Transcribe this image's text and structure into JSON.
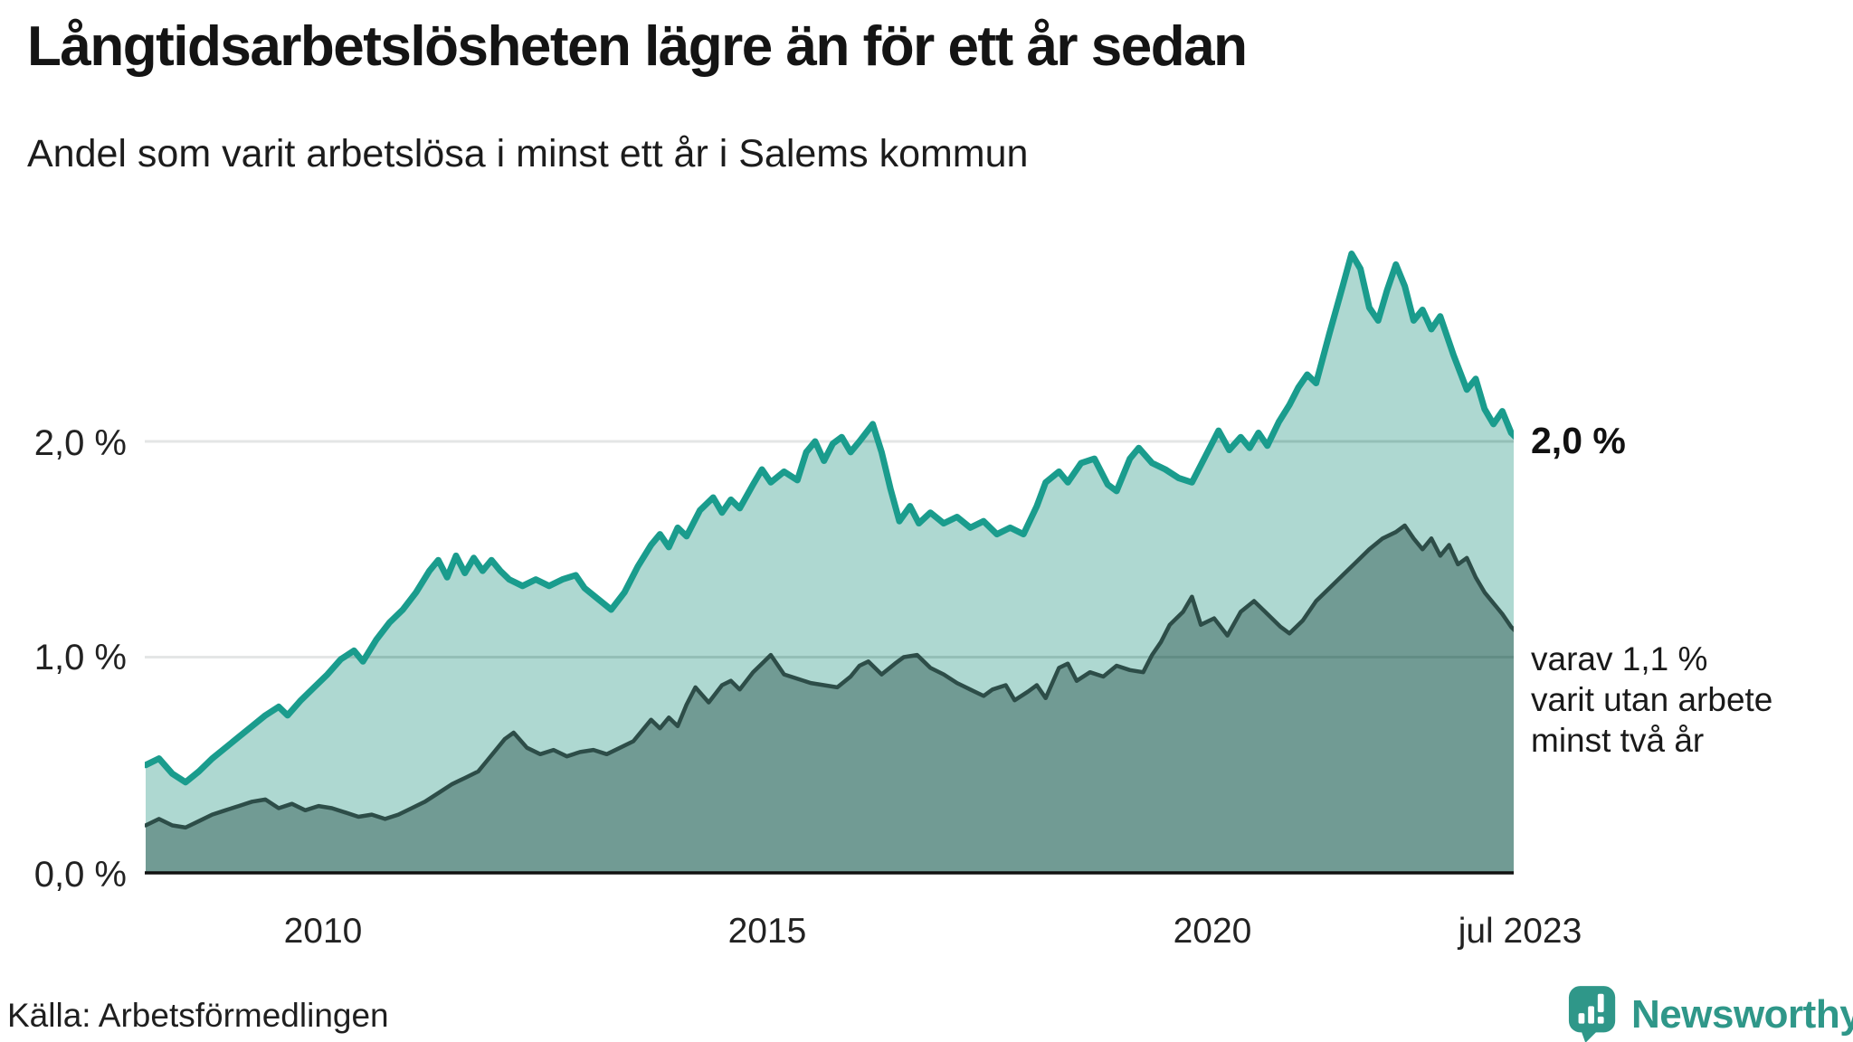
{
  "header": {
    "title": "Långtidsarbetslösheten lägre än för ett år sedan",
    "subtitle": "Andel som varit arbetslösa i minst ett år i Salems kommun"
  },
  "footer": {
    "source": "Källa: Arbetsförmedlingen",
    "brand": {
      "name": "Newsworthy",
      "color": "#2f9789"
    }
  },
  "chart_data": {
    "type": "area",
    "title": "Långtidsarbetslösheten lägre än för ett år sedan",
    "subtitle": "Andel som varit arbetslösa i minst ett år i Salems kommun",
    "xlabel": "",
    "ylabel": "",
    "x_range": [
      2008.0,
      2023.58
    ],
    "ylim": [
      0,
      3.3
    ],
    "grid": "horizontal",
    "legend": "none",
    "gridline_values": [
      1.0,
      2.0
    ],
    "y_tick_labels": [
      "2,0 %",
      "1,0 %",
      "0,0 %"
    ],
    "x_tick_labels": [
      "2010",
      "2015",
      "2020",
      "jul 2023"
    ],
    "x_tick_values": [
      2010,
      2015,
      2020,
      2023.5
    ],
    "colors": {
      "gridline": "#e4e6e6",
      "baseline": "#111111"
    },
    "series": [
      {
        "id": "unemployed_min_one_year_total",
        "end_label": "2,0 %",
        "end_value": 2.0,
        "color": "#1a9c8d",
        "fill": "#aed8d1",
        "stroke_width": 7,
        "points": [
          [
            2008.0,
            0.5
          ],
          [
            2008.15,
            0.53
          ],
          [
            2008.3,
            0.46
          ],
          [
            2008.45,
            0.42
          ],
          [
            2008.6,
            0.47
          ],
          [
            2008.75,
            0.53
          ],
          [
            2008.9,
            0.58
          ],
          [
            2009.05,
            0.63
          ],
          [
            2009.2,
            0.68
          ],
          [
            2009.35,
            0.73
          ],
          [
            2009.5,
            0.77
          ],
          [
            2009.6,
            0.73
          ],
          [
            2009.75,
            0.8
          ],
          [
            2009.9,
            0.86
          ],
          [
            2010.05,
            0.92
          ],
          [
            2010.2,
            0.99
          ],
          [
            2010.35,
            1.03
          ],
          [
            2010.45,
            0.98
          ],
          [
            2010.6,
            1.08
          ],
          [
            2010.75,
            1.16
          ],
          [
            2010.9,
            1.22
          ],
          [
            2011.05,
            1.3
          ],
          [
            2011.2,
            1.4
          ],
          [
            2011.3,
            1.45
          ],
          [
            2011.4,
            1.37
          ],
          [
            2011.5,
            1.47
          ],
          [
            2011.6,
            1.39
          ],
          [
            2011.7,
            1.46
          ],
          [
            2011.8,
            1.4
          ],
          [
            2011.9,
            1.45
          ],
          [
            2012.0,
            1.4
          ],
          [
            2012.1,
            1.36
          ],
          [
            2012.25,
            1.33
          ],
          [
            2012.4,
            1.36
          ],
          [
            2012.55,
            1.33
          ],
          [
            2012.7,
            1.36
          ],
          [
            2012.85,
            1.38
          ],
          [
            2012.95,
            1.32
          ],
          [
            2013.1,
            1.27
          ],
          [
            2013.25,
            1.22
          ],
          [
            2013.4,
            1.3
          ],
          [
            2013.55,
            1.42
          ],
          [
            2013.7,
            1.52
          ],
          [
            2013.8,
            1.57
          ],
          [
            2013.9,
            1.51
          ],
          [
            2014.0,
            1.6
          ],
          [
            2014.1,
            1.56
          ],
          [
            2014.25,
            1.68
          ],
          [
            2014.4,
            1.74
          ],
          [
            2014.5,
            1.67
          ],
          [
            2014.6,
            1.73
          ],
          [
            2014.7,
            1.69
          ],
          [
            2014.85,
            1.8
          ],
          [
            2014.95,
            1.87
          ],
          [
            2015.05,
            1.81
          ],
          [
            2015.2,
            1.86
          ],
          [
            2015.35,
            1.82
          ],
          [
            2015.45,
            1.95
          ],
          [
            2015.55,
            2.0
          ],
          [
            2015.65,
            1.91
          ],
          [
            2015.75,
            1.99
          ],
          [
            2015.85,
            2.02
          ],
          [
            2015.95,
            1.95
          ],
          [
            2016.05,
            2.0
          ],
          [
            2016.2,
            2.08
          ],
          [
            2016.3,
            1.95
          ],
          [
            2016.4,
            1.78
          ],
          [
            2016.5,
            1.63
          ],
          [
            2016.62,
            1.7
          ],
          [
            2016.72,
            1.62
          ],
          [
            2016.85,
            1.67
          ],
          [
            2017.0,
            1.62
          ],
          [
            2017.15,
            1.65
          ],
          [
            2017.3,
            1.6
          ],
          [
            2017.45,
            1.63
          ],
          [
            2017.6,
            1.57
          ],
          [
            2017.75,
            1.6
          ],
          [
            2017.9,
            1.57
          ],
          [
            2018.05,
            1.7
          ],
          [
            2018.15,
            1.81
          ],
          [
            2018.3,
            1.86
          ],
          [
            2018.4,
            1.81
          ],
          [
            2018.55,
            1.9
          ],
          [
            2018.7,
            1.92
          ],
          [
            2018.85,
            1.8
          ],
          [
            2018.95,
            1.77
          ],
          [
            2019.1,
            1.92
          ],
          [
            2019.2,
            1.97
          ],
          [
            2019.35,
            1.9
          ],
          [
            2019.5,
            1.87
          ],
          [
            2019.65,
            1.83
          ],
          [
            2019.8,
            1.81
          ],
          [
            2019.95,
            1.93
          ],
          [
            2020.1,
            2.05
          ],
          [
            2020.22,
            1.96
          ],
          [
            2020.35,
            2.02
          ],
          [
            2020.45,
            1.97
          ],
          [
            2020.55,
            2.04
          ],
          [
            2020.65,
            1.98
          ],
          [
            2020.78,
            2.09
          ],
          [
            2020.9,
            2.17
          ],
          [
            2021.0,
            2.25
          ],
          [
            2021.1,
            2.31
          ],
          [
            2021.2,
            2.27
          ],
          [
            2021.35,
            2.5
          ],
          [
            2021.5,
            2.72
          ],
          [
            2021.6,
            2.87
          ],
          [
            2021.7,
            2.8
          ],
          [
            2021.8,
            2.62
          ],
          [
            2021.9,
            2.56
          ],
          [
            2022.0,
            2.7
          ],
          [
            2022.1,
            2.82
          ],
          [
            2022.2,
            2.72
          ],
          [
            2022.3,
            2.56
          ],
          [
            2022.4,
            2.61
          ],
          [
            2022.5,
            2.52
          ],
          [
            2022.6,
            2.58
          ],
          [
            2022.75,
            2.4
          ],
          [
            2022.9,
            2.24
          ],
          [
            2023.0,
            2.29
          ],
          [
            2023.1,
            2.15
          ],
          [
            2023.2,
            2.08
          ],
          [
            2023.3,
            2.14
          ],
          [
            2023.4,
            2.04
          ],
          [
            2023.5,
            2.0
          ]
        ]
      },
      {
        "id": "unemployed_min_two_years",
        "end_value": 1.1,
        "note_lines": [
          "varav 1,1 %",
          "varit utan arbete",
          "minst två år"
        ],
        "color": "#2d4d48",
        "fill": "#719b94",
        "stroke_width": 4.5,
        "points": [
          [
            2008.0,
            0.22
          ],
          [
            2008.15,
            0.25
          ],
          [
            2008.3,
            0.22
          ],
          [
            2008.45,
            0.21
          ],
          [
            2008.6,
            0.24
          ],
          [
            2008.75,
            0.27
          ],
          [
            2008.9,
            0.29
          ],
          [
            2009.05,
            0.31
          ],
          [
            2009.2,
            0.33
          ],
          [
            2009.35,
            0.34
          ],
          [
            2009.5,
            0.3
          ],
          [
            2009.65,
            0.32
          ],
          [
            2009.8,
            0.29
          ],
          [
            2009.95,
            0.31
          ],
          [
            2010.1,
            0.3
          ],
          [
            2010.25,
            0.28
          ],
          [
            2010.4,
            0.26
          ],
          [
            2010.55,
            0.27
          ],
          [
            2010.7,
            0.25
          ],
          [
            2010.85,
            0.27
          ],
          [
            2011.0,
            0.3
          ],
          [
            2011.15,
            0.33
          ],
          [
            2011.3,
            0.37
          ],
          [
            2011.45,
            0.41
          ],
          [
            2011.6,
            0.44
          ],
          [
            2011.75,
            0.47
          ],
          [
            2011.85,
            0.52
          ],
          [
            2011.95,
            0.57
          ],
          [
            2012.05,
            0.62
          ],
          [
            2012.15,
            0.65
          ],
          [
            2012.3,
            0.58
          ],
          [
            2012.45,
            0.55
          ],
          [
            2012.6,
            0.57
          ],
          [
            2012.75,
            0.54
          ],
          [
            2012.9,
            0.56
          ],
          [
            2013.05,
            0.57
          ],
          [
            2013.2,
            0.55
          ],
          [
            2013.35,
            0.58
          ],
          [
            2013.5,
            0.61
          ],
          [
            2013.6,
            0.66
          ],
          [
            2013.7,
            0.71
          ],
          [
            2013.8,
            0.67
          ],
          [
            2013.9,
            0.72
          ],
          [
            2014.0,
            0.68
          ],
          [
            2014.1,
            0.78
          ],
          [
            2014.2,
            0.86
          ],
          [
            2014.35,
            0.79
          ],
          [
            2014.5,
            0.87
          ],
          [
            2014.6,
            0.89
          ],
          [
            2014.7,
            0.85
          ],
          [
            2014.85,
            0.93
          ],
          [
            2014.95,
            0.97
          ],
          [
            2015.05,
            1.01
          ],
          [
            2015.2,
            0.92
          ],
          [
            2015.35,
            0.9
          ],
          [
            2015.5,
            0.88
          ],
          [
            2015.65,
            0.87
          ],
          [
            2015.8,
            0.86
          ],
          [
            2015.95,
            0.91
          ],
          [
            2016.05,
            0.96
          ],
          [
            2016.15,
            0.98
          ],
          [
            2016.3,
            0.92
          ],
          [
            2016.45,
            0.97
          ],
          [
            2016.55,
            1.0
          ],
          [
            2016.7,
            1.01
          ],
          [
            2016.85,
            0.95
          ],
          [
            2017.0,
            0.92
          ],
          [
            2017.15,
            0.88
          ],
          [
            2017.3,
            0.85
          ],
          [
            2017.45,
            0.82
          ],
          [
            2017.55,
            0.85
          ],
          [
            2017.7,
            0.87
          ],
          [
            2017.8,
            0.8
          ],
          [
            2017.95,
            0.84
          ],
          [
            2018.05,
            0.87
          ],
          [
            2018.15,
            0.81
          ],
          [
            2018.3,
            0.95
          ],
          [
            2018.4,
            0.97
          ],
          [
            2018.5,
            0.89
          ],
          [
            2018.65,
            0.93
          ],
          [
            2018.8,
            0.91
          ],
          [
            2018.95,
            0.96
          ],
          [
            2019.1,
            0.94
          ],
          [
            2019.25,
            0.93
          ],
          [
            2019.35,
            1.01
          ],
          [
            2019.45,
            1.07
          ],
          [
            2019.55,
            1.15
          ],
          [
            2019.7,
            1.21
          ],
          [
            2019.8,
            1.28
          ],
          [
            2019.9,
            1.15
          ],
          [
            2020.05,
            1.18
          ],
          [
            2020.2,
            1.1
          ],
          [
            2020.35,
            1.21
          ],
          [
            2020.5,
            1.26
          ],
          [
            2020.65,
            1.2
          ],
          [
            2020.8,
            1.14
          ],
          [
            2020.9,
            1.11
          ],
          [
            2021.05,
            1.17
          ],
          [
            2021.2,
            1.26
          ],
          [
            2021.35,
            1.32
          ],
          [
            2021.5,
            1.38
          ],
          [
            2021.65,
            1.44
          ],
          [
            2021.8,
            1.5
          ],
          [
            2021.95,
            1.55
          ],
          [
            2022.1,
            1.58
          ],
          [
            2022.2,
            1.61
          ],
          [
            2022.3,
            1.55
          ],
          [
            2022.4,
            1.5
          ],
          [
            2022.5,
            1.55
          ],
          [
            2022.6,
            1.47
          ],
          [
            2022.7,
            1.52
          ],
          [
            2022.8,
            1.43
          ],
          [
            2022.9,
            1.46
          ],
          [
            2023.0,
            1.37
          ],
          [
            2023.1,
            1.3
          ],
          [
            2023.2,
            1.25
          ],
          [
            2023.3,
            1.2
          ],
          [
            2023.4,
            1.14
          ],
          [
            2023.5,
            1.1
          ]
        ]
      }
    ]
  }
}
